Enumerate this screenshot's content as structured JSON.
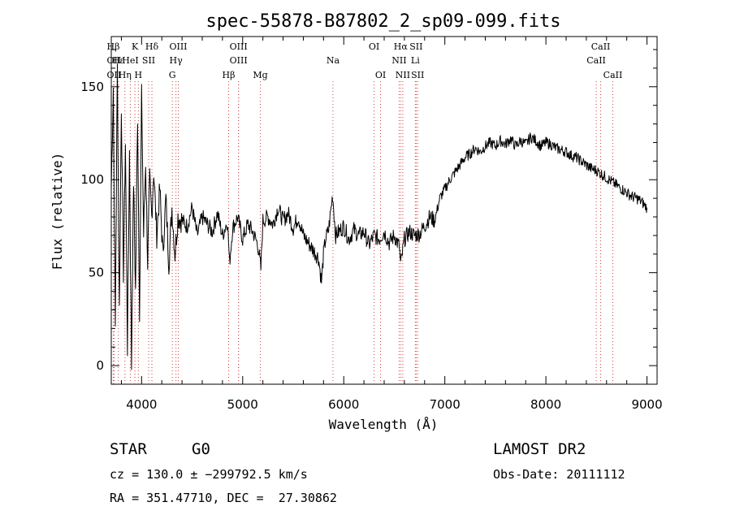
{
  "chart_data": {
    "type": "line",
    "title": "spec-55878-B87802_2_sp09-099.fits",
    "xlabel": "Wavelength (Å)",
    "ylabel": "Flux (relative)",
    "xlim": [
      3700,
      9100
    ],
    "ylim": [
      -10,
      177
    ],
    "xticks": [
      4000,
      5000,
      6000,
      7000,
      8000,
      9000
    ],
    "yticks": [
      0,
      50,
      100,
      150
    ],
    "grid": false,
    "series": [
      {
        "x": [
          3700,
          3720,
          3740,
          3760,
          3780,
          3800,
          3820,
          3840,
          3860,
          3880,
          3900,
          3920,
          3940,
          3960,
          3980,
          4000,
          4020,
          4040,
          4060,
          4080,
          4100,
          4120,
          4150,
          4180,
          4210,
          4240,
          4270,
          4300,
          4330,
          4360,
          4400,
          4450,
          4500,
          4550,
          4600,
          4650,
          4700,
          4750,
          4800,
          4850,
          4870,
          4900,
          4950,
          5000,
          5050,
          5100,
          5150,
          5180,
          5200,
          5250,
          5300,
          5350,
          5400,
          5450,
          5500,
          5550,
          5600,
          5650,
          5700,
          5750,
          5780,
          5800,
          5820,
          5850,
          5890,
          5920,
          5950,
          6000,
          6050,
          6100,
          6150,
          6200,
          6250,
          6300,
          6350,
          6400,
          6450,
          6500,
          6550,
          6563,
          6600,
          6650,
          6700,
          6750,
          6800,
          6850,
          6900,
          6950,
          7000,
          7050,
          7100,
          7150,
          7200,
          7250,
          7300,
          7350,
          7400,
          7450,
          7500,
          7550,
          7600,
          7650,
          7700,
          7750,
          7800,
          7850,
          7900,
          7950,
          8000,
          8050,
          8100,
          8150,
          8200,
          8250,
          8300,
          8350,
          8400,
          8450,
          8500,
          8550,
          8600,
          8650,
          8700,
          8750,
          8800,
          8850,
          8900,
          8950,
          8980,
          9000
        ],
        "values": [
          95,
          150,
          20,
          160,
          30,
          140,
          50,
          120,
          10,
          115,
          0,
          100,
          40,
          135,
          30,
          145,
          70,
          110,
          55,
          100,
          80,
          105,
          70,
          95,
          60,
          90,
          55,
          85,
          60,
          80,
          78,
          75,
          85,
          70,
          80,
          76,
          72,
          82,
          70,
          78,
          55,
          74,
          80,
          68,
          76,
          72,
          65,
          52,
          78,
          80,
          76,
          85,
          78,
          82,
          74,
          80,
          70,
          66,
          62,
          58,
          45,
          60,
          68,
          73,
          92,
          70,
          72,
          75,
          68,
          73,
          70,
          72,
          65,
          70,
          68,
          72,
          66,
          70,
          64,
          54,
          68,
          72,
          70,
          71,
          75,
          80,
          78,
          90,
          95,
          100,
          104,
          108,
          112,
          114,
          117,
          115,
          118,
          120,
          118,
          121,
          119,
          122,
          118,
          121,
          119,
          123,
          121,
          118,
          120,
          119,
          117,
          116,
          115,
          113,
          112,
          110,
          108,
          106,
          105,
          103,
          101,
          99,
          97,
          95,
          93,
          91,
          90,
          88,
          86,
          85
        ]
      }
    ],
    "lines": [
      {
        "label": "Hβ",
        "x": 3720,
        "row": 0
      },
      {
        "label": "OII",
        "x": 3727,
        "row": 1
      },
      {
        "label": "OII",
        "x": 3727,
        "row": 2
      },
      {
        "label": "Hε",
        "x": 3770,
        "row": 1
      },
      {
        "label": "Hη",
        "x": 3835,
        "row": 2
      },
      {
        "label": "K",
        "x": 3934,
        "row": 0
      },
      {
        "label": "HeI",
        "x": 3889,
        "row": 1
      },
      {
        "label": "SII",
        "x": 4070,
        "row": 1
      },
      {
        "label": "H",
        "x": 3968,
        "row": 2
      },
      {
        "label": "Hδ",
        "x": 4102,
        "row": 0
      },
      {
        "label": "OIII",
        "x": 4363,
        "row": 0
      },
      {
        "label": "Hγ",
        "x": 4340,
        "row": 1
      },
      {
        "label": "G",
        "x": 4304,
        "row": 2
      },
      {
        "label": "OIII",
        "x": 4959,
        "row": 0
      },
      {
        "label": "OIII",
        "x": 4959,
        "row": 1
      },
      {
        "label": "Hβ",
        "x": 4861,
        "row": 2
      },
      {
        "label": "Mg",
        "x": 5175,
        "row": 2
      },
      {
        "label": "Na",
        "x": 5893,
        "row": 1
      },
      {
        "label": "OI",
        "x": 6300,
        "row": 0
      },
      {
        "label": "OI",
        "x": 6364,
        "row": 2
      },
      {
        "label": "Hα",
        "x": 6563,
        "row": 0
      },
      {
        "label": "SII",
        "x": 6716,
        "row": 0
      },
      {
        "label": "NII",
        "x": 6548,
        "row": 1
      },
      {
        "label": "Li",
        "x": 6708,
        "row": 1
      },
      {
        "label": "NII",
        "x": 6584,
        "row": 2
      },
      {
        "label": "SII",
        "x": 6731,
        "row": 2
      },
      {
        "label": "CaII",
        "x": 8542,
        "row": 0
      },
      {
        "label": "CaII",
        "x": 8498,
        "row": 1
      },
      {
        "label": "CaII",
        "x": 8662,
        "row": 2
      }
    ]
  },
  "info": {
    "object_type": "STAR",
    "subclass": "G0",
    "survey": "LAMOST DR2",
    "redshift": "cz = 130.0 ± −299792.5 km/s",
    "obs_date": "Obs-Date: 20111112",
    "coords": "RA = 351.47710, DEC =  27.30862"
  }
}
